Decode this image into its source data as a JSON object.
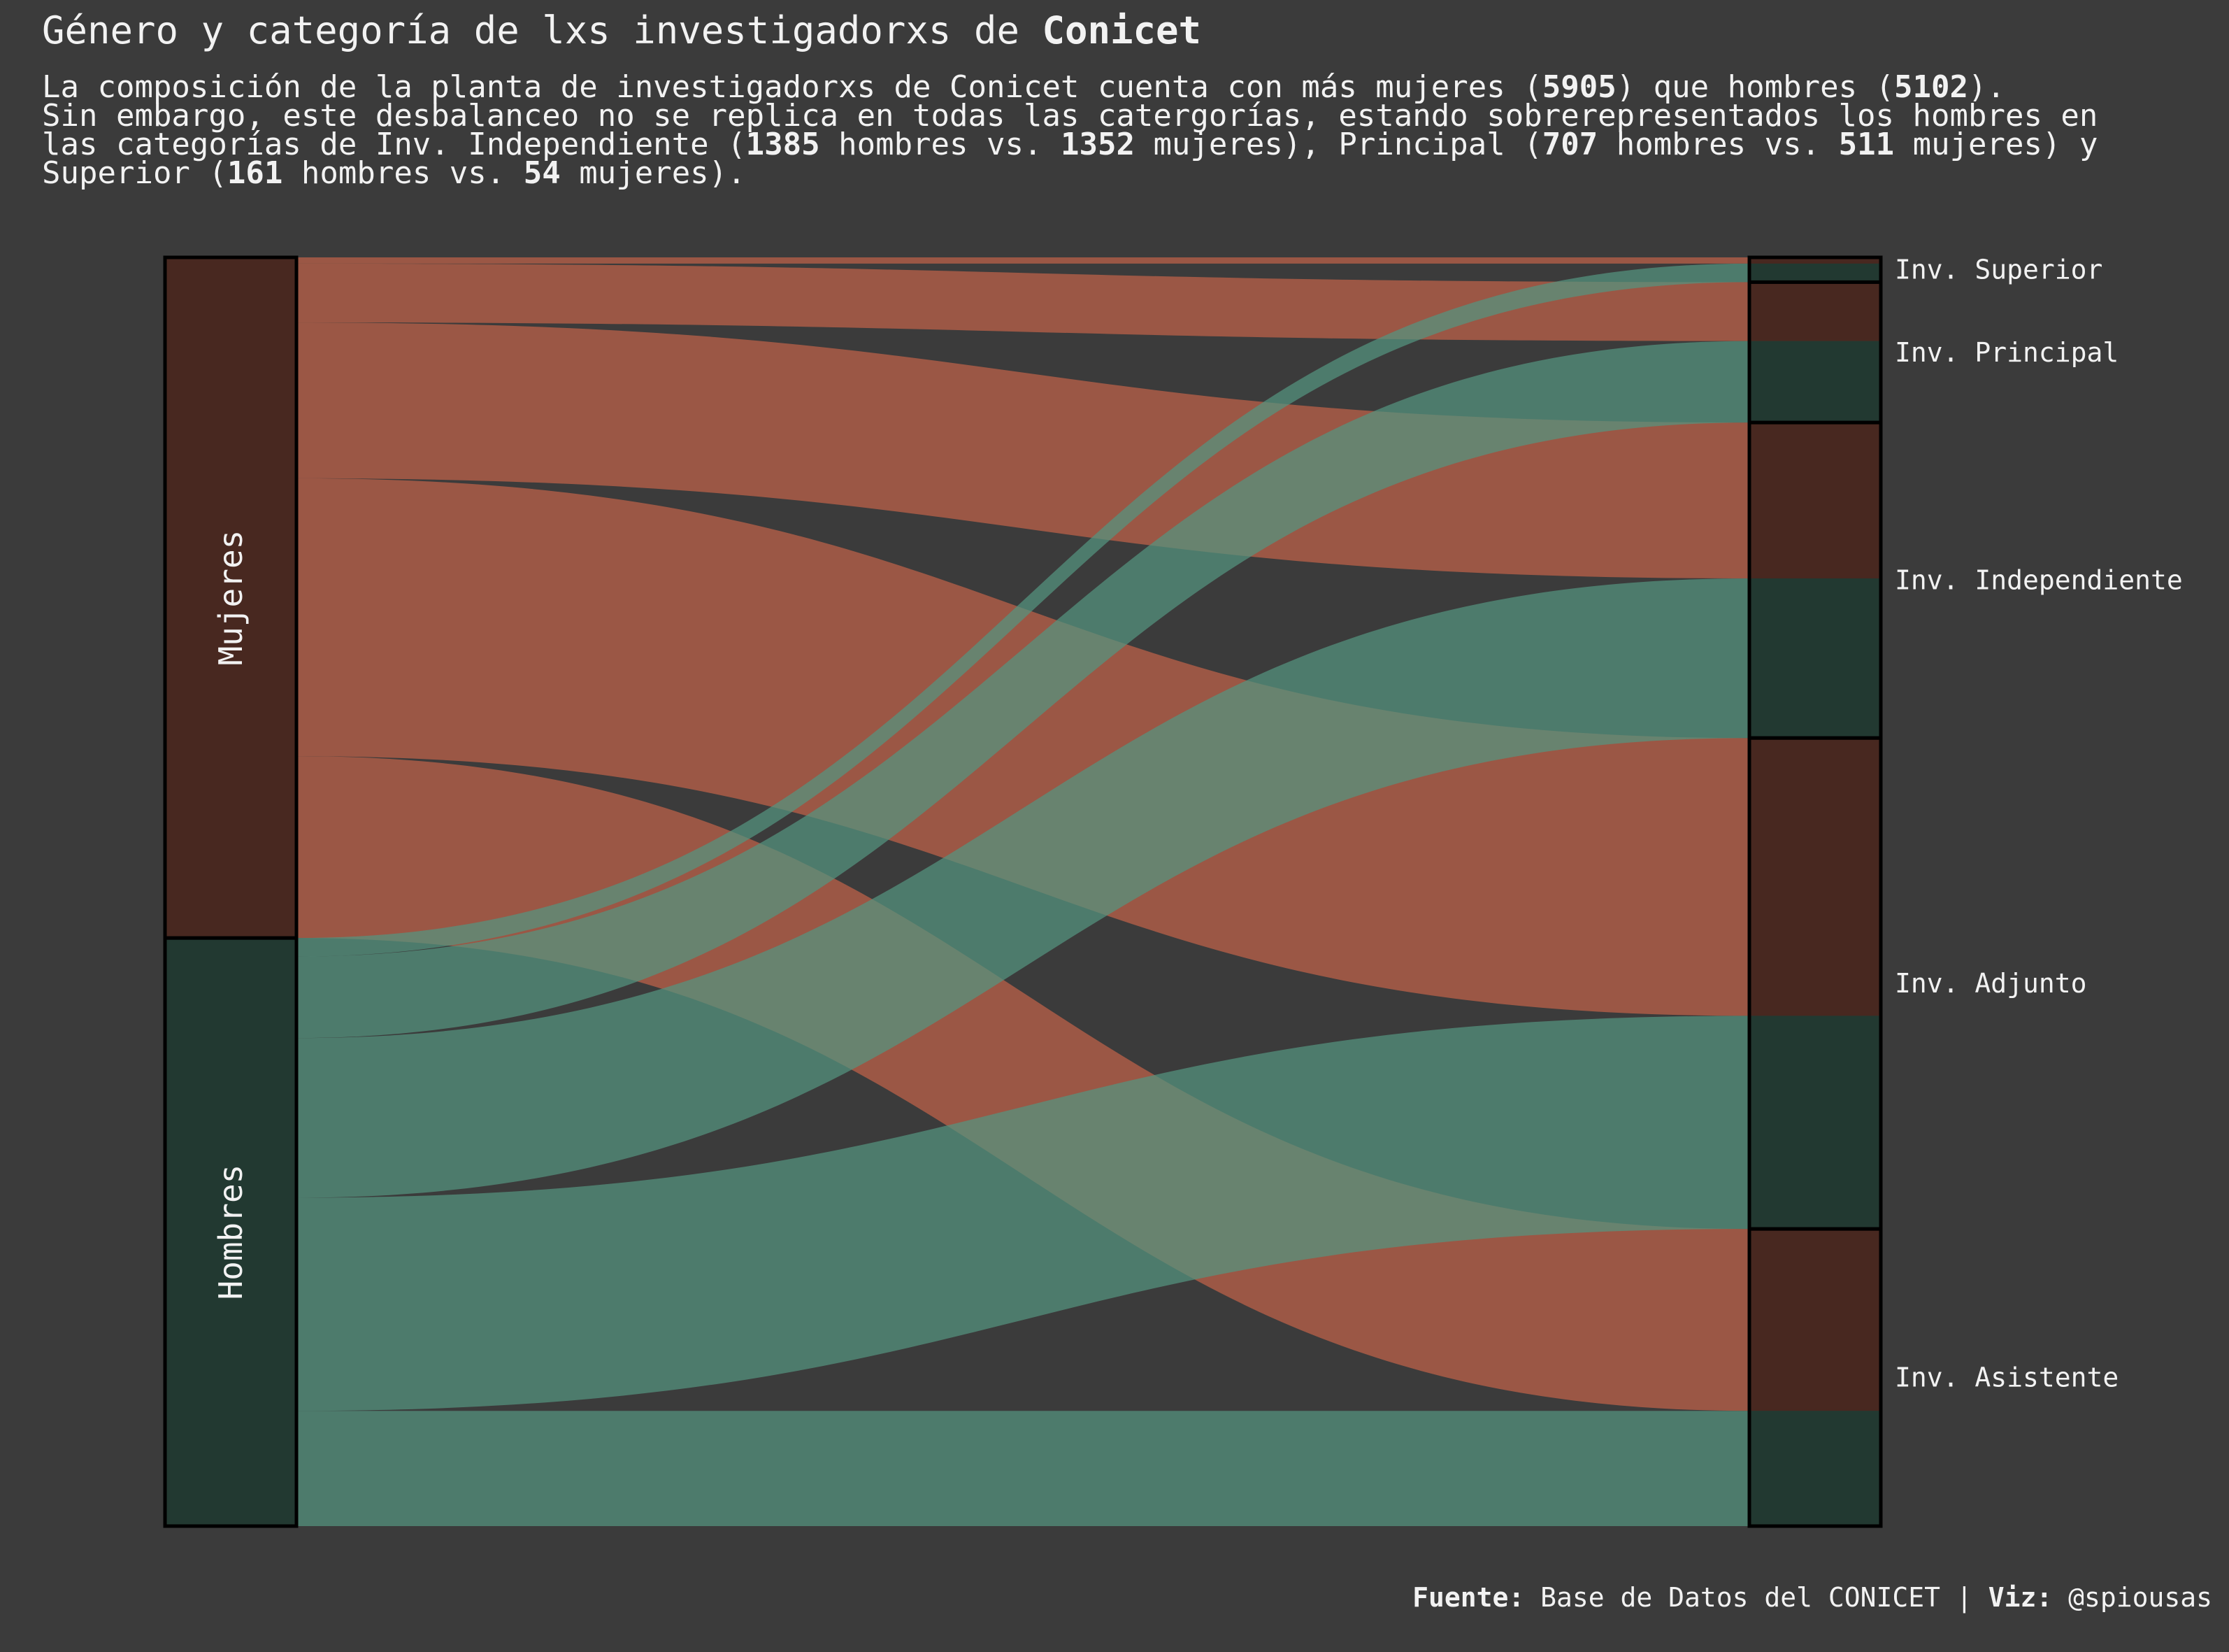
{
  "title": {
    "prefix": "Género y categoría de lxs investigadorxs de ",
    "strong": "Conicet"
  },
  "subtitle": {
    "line1": [
      {
        "t": "La composición de la planta de investigadorxs de Conicet cuenta con más mujeres ("
      },
      {
        "t": "5905",
        "b": true
      },
      {
        "t": ") que hombres ("
      },
      {
        "t": "5102",
        "b": true
      },
      {
        "t": ")."
      }
    ],
    "line2": [
      {
        "t": "Sin embargo, este desbalanceo no se replica en todas las catergorías, estando sobrerepresentados los hombres en"
      }
    ],
    "line3": [
      {
        "t": "las categorías de Inv. Independiente ("
      },
      {
        "t": "1385",
        "b": true
      },
      {
        "t": " hombres vs. "
      },
      {
        "t": "1352",
        "b": true
      },
      {
        "t": " mujeres), Principal ("
      },
      {
        "t": "707",
        "b": true
      },
      {
        "t": " hombres vs. "
      },
      {
        "t": "511",
        "b": true
      },
      {
        "t": " mujeres) y"
      }
    ],
    "line4": [
      {
        "t": "Superior ("
      },
      {
        "t": "161",
        "b": true
      },
      {
        "t": " hombres vs. "
      },
      {
        "t": "54",
        "b": true
      },
      {
        "t": " mujeres)."
      }
    ]
  },
  "caption": {
    "source_label": "Fuente:",
    "source_text": " Base de Datos del CONICET | ",
    "viz_label": "Viz:",
    "viz_text": " @spiousas"
  },
  "colors": {
    "background": "#3b3b3b",
    "mujeres_node": "#482820",
    "hombres_node": "#223931",
    "mujeres_flow": "#c0624a",
    "hombres_flow": "#559480"
  },
  "chart_data": {
    "type": "alluvial",
    "genders": [
      "Mujeres",
      "Hombres"
    ],
    "categories": [
      "Inv. Superior",
      "Inv. Principal",
      "Inv. Independiente",
      "Inv. Adjunto",
      "Inv. Asistente"
    ],
    "flows": [
      {
        "gender": "Mujeres",
        "category": "Inv. Superior",
        "value": 54
      },
      {
        "gender": "Mujeres",
        "category": "Inv. Principal",
        "value": 511
      },
      {
        "gender": "Mujeres",
        "category": "Inv. Independiente",
        "value": 1352
      },
      {
        "gender": "Mujeres",
        "category": "Inv. Adjunto",
        "value": 2410
      },
      {
        "gender": "Mujeres",
        "category": "Inv. Asistente",
        "value": 1578
      },
      {
        "gender": "Hombres",
        "category": "Inv. Superior",
        "value": 161
      },
      {
        "gender": "Hombres",
        "category": "Inv. Principal",
        "value": 707
      },
      {
        "gender": "Hombres",
        "category": "Inv. Independiente",
        "value": 1385
      },
      {
        "gender": "Hombres",
        "category": "Inv. Adjunto",
        "value": 1849
      },
      {
        "gender": "Hombres",
        "category": "Inv. Asistente",
        "value": 1000
      }
    ],
    "totals": {
      "Mujeres": 5905,
      "Hombres": 5102
    }
  }
}
